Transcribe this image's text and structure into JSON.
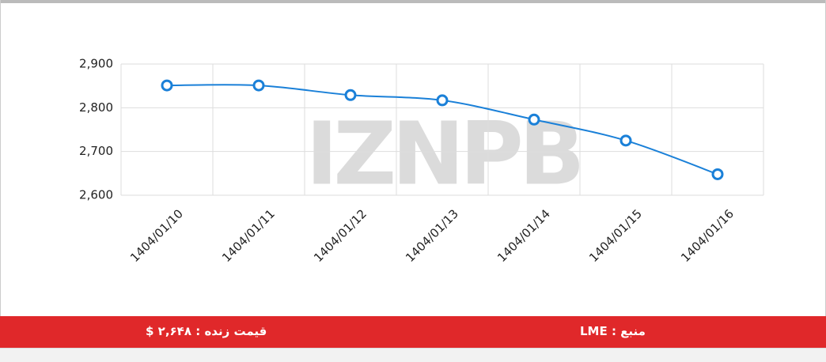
{
  "chart_data": {
    "type": "line",
    "watermark": "IZNPB",
    "categories": [
      "1404/01/10",
      "1404/01/11",
      "1404/01/12",
      "1404/01/13",
      "1404/01/14",
      "1404/01/15",
      "1404/01/16"
    ],
    "series": [
      {
        "name": "LME",
        "color": "#1a80d8",
        "values": [
          2851,
          2851,
          2829,
          2817,
          2773,
          2725,
          2648
        ]
      }
    ],
    "ylim": [
      2600,
      2900
    ],
    "yticks": [
      {
        "value": 2600,
        "label": "2,600"
      },
      {
        "value": 2700,
        "label": "2,700"
      },
      {
        "value": 2800,
        "label": "2,800"
      },
      {
        "value": 2900,
        "label": "2,900"
      }
    ],
    "grid": true
  },
  "footer": {
    "live_price": "قیمت زنده : ۲,۶۴۸ $",
    "source": "منبع : LME"
  }
}
